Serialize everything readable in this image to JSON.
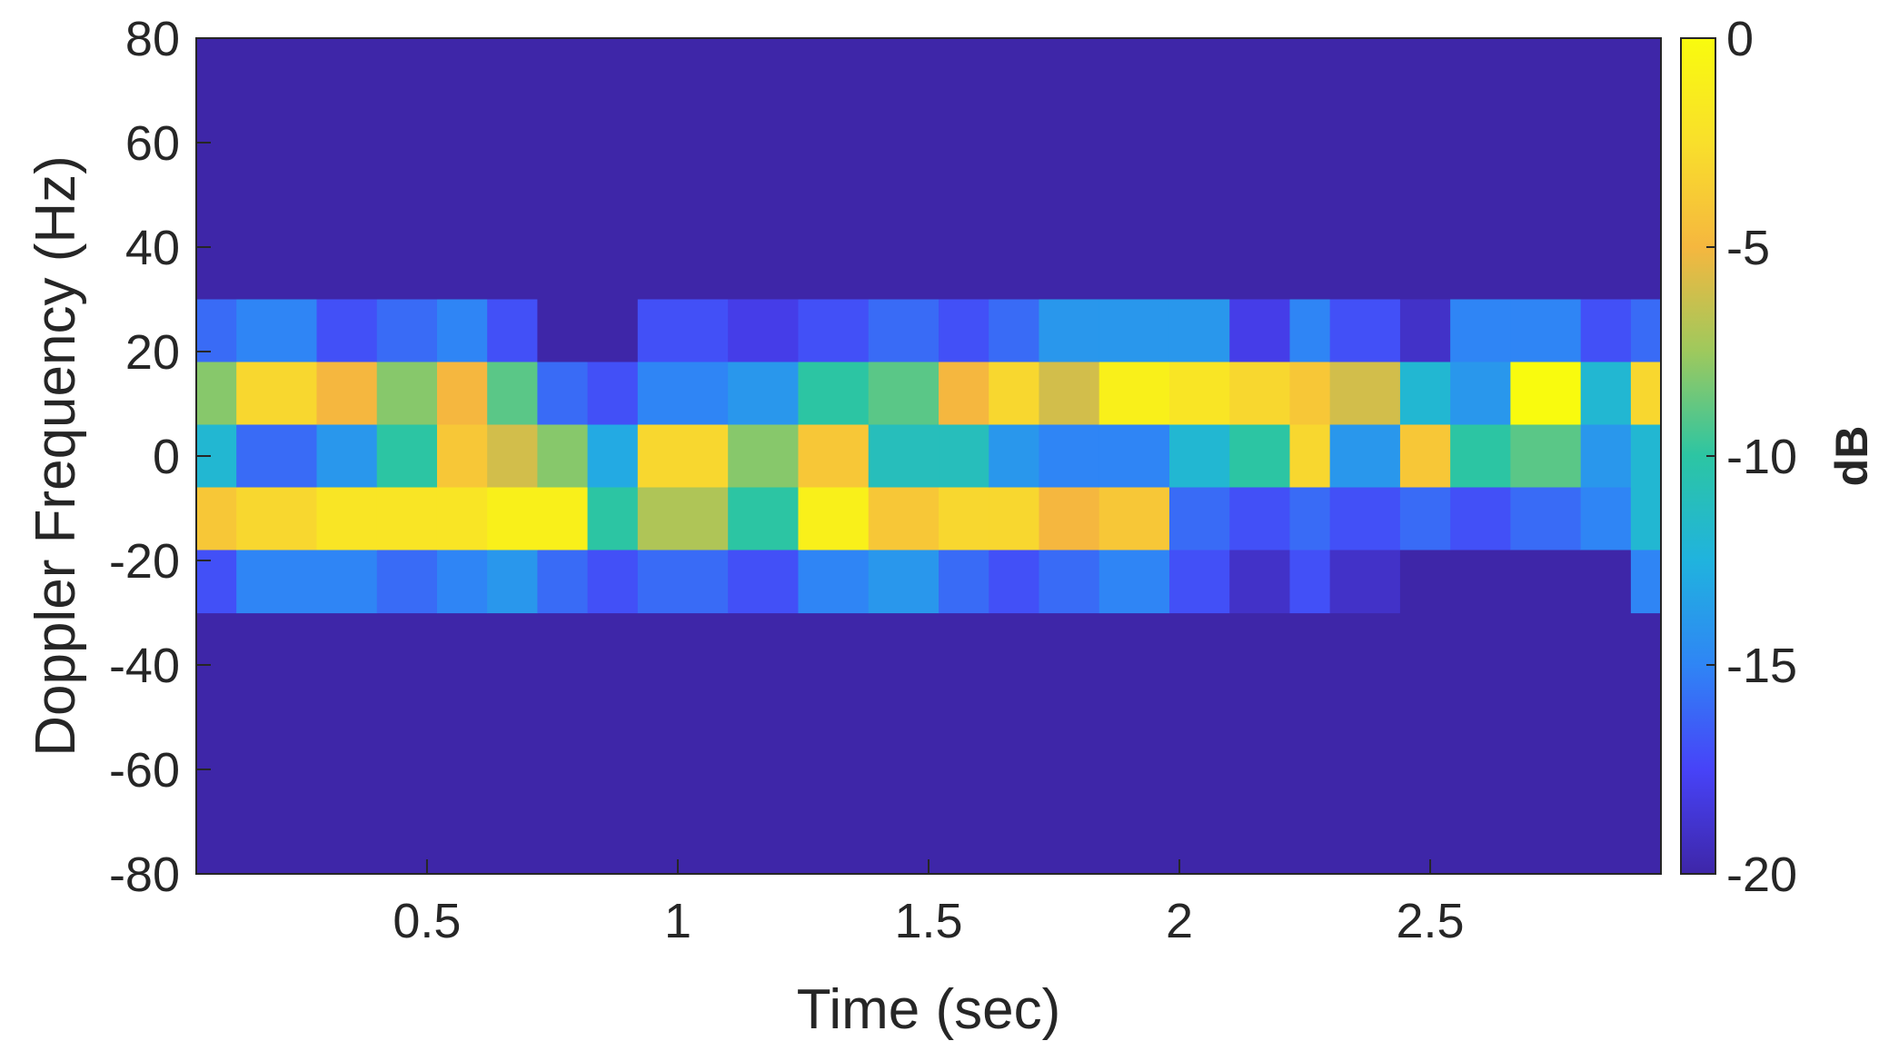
{
  "chart_data": {
    "type": "heatmap",
    "title": "",
    "xlabel": "Time (sec)",
    "ylabel": "Doppler Frequency (Hz)",
    "colorbar_label": "dB",
    "xlim": [
      0.04,
      2.96
    ],
    "ylim": [
      -80,
      80
    ],
    "xticks": [
      0.5,
      1,
      1.5,
      2,
      2.5
    ],
    "xtick_labels": [
      "0.5",
      "1",
      "1.5",
      "2",
      "2.5"
    ],
    "yticks": [
      -80,
      -60,
      -40,
      -20,
      0,
      20,
      40,
      60,
      80
    ],
    "ytick_labels": [
      "-80",
      "-60",
      "-40",
      "-20",
      "0",
      "20",
      "40",
      "60",
      "80"
    ],
    "clim": [
      -20,
      0
    ],
    "cticks": [
      -20,
      -15,
      -10,
      -5,
      0
    ],
    "ctick_labels": [
      "-20",
      "-15",
      "-10",
      "-5",
      "0"
    ],
    "colormap": "parula",
    "colormap_stops": [
      "#3e26a8",
      "#4743f8",
      "#2f85f5",
      "#20b3de",
      "#2cc5a3",
      "#9ec95d",
      "#f5b73f",
      "#f9df2b",
      "#f9fb0e"
    ],
    "background_db": -20,
    "frequency_bins": [
      {
        "f0": 18,
        "f1": 30
      },
      {
        "f0": 6,
        "f1": 18
      },
      {
        "f0": -6,
        "f1": 6
      },
      {
        "f0": -18,
        "f1": -6
      },
      {
        "f0": -30,
        "f1": -18
      }
    ],
    "time_segments": [
      {
        "t0": 0.04,
        "t1": 0.12,
        "db": [
          -16,
          -8,
          -12,
          -4,
          -17
        ]
      },
      {
        "t0": 0.12,
        "t1": 0.28,
        "db": [
          -15,
          -3,
          -16,
          -3,
          -15
        ]
      },
      {
        "t0": 0.28,
        "t1": 0.4,
        "db": [
          -17,
          -5,
          -14,
          -2,
          -15
        ]
      },
      {
        "t0": 0.4,
        "t1": 0.52,
        "db": [
          -16,
          -8,
          -10,
          -2,
          -16
        ]
      },
      {
        "t0": 0.52,
        "t1": 0.62,
        "db": [
          -15,
          -5,
          -4,
          -2,
          -15
        ]
      },
      {
        "t0": 0.62,
        "t1": 0.72,
        "db": [
          -17,
          -9,
          -6,
          -1,
          -14
        ]
      },
      {
        "t0": 0.72,
        "t1": 0.82,
        "db": [
          -20,
          -16,
          -8,
          -1,
          -16
        ]
      },
      {
        "t0": 0.82,
        "t1": 0.92,
        "db": [
          -20,
          -17,
          -13,
          -10,
          -17
        ]
      },
      {
        "t0": 0.92,
        "t1": 1.1,
        "db": [
          -17,
          -15,
          -3,
          -7,
          -16
        ]
      },
      {
        "t0": 1.1,
        "t1": 1.24,
        "db": [
          -18,
          -14,
          -8,
          -10,
          -17
        ]
      },
      {
        "t0": 1.24,
        "t1": 1.38,
        "db": [
          -17,
          -10,
          -4,
          -1,
          -15
        ]
      },
      {
        "t0": 1.38,
        "t1": 1.52,
        "db": [
          -16,
          -9,
          -11,
          -4,
          -14
        ]
      },
      {
        "t0": 1.52,
        "t1": 1.62,
        "db": [
          -17,
          -5,
          -11,
          -3,
          -16
        ]
      },
      {
        "t0": 1.62,
        "t1": 1.72,
        "db": [
          -16,
          -3,
          -14,
          -3,
          -17
        ]
      },
      {
        "t0": 1.72,
        "t1": 1.84,
        "db": [
          -14,
          -6,
          -15,
          -5,
          -16
        ]
      },
      {
        "t0": 1.84,
        "t1": 1.98,
        "db": [
          -14,
          -1,
          -15,
          -4,
          -15
        ]
      },
      {
        "t0": 1.98,
        "t1": 2.1,
        "db": [
          -14,
          -2,
          -12,
          -16,
          -17
        ]
      },
      {
        "t0": 2.1,
        "t1": 2.22,
        "db": [
          -18,
          -3,
          -10,
          -17,
          -19
        ]
      },
      {
        "t0": 2.22,
        "t1": 2.3,
        "db": [
          -15,
          -4,
          -3,
          -16,
          -17
        ]
      },
      {
        "t0": 2.3,
        "t1": 2.44,
        "db": [
          -17,
          -6,
          -14,
          -17,
          -19
        ]
      },
      {
        "t0": 2.44,
        "t1": 2.54,
        "db": [
          -19,
          -12,
          -4,
          -16,
          -20
        ]
      },
      {
        "t0": 2.54,
        "t1": 2.66,
        "db": [
          -15,
          -14,
          -10,
          -17,
          -20
        ]
      },
      {
        "t0": 2.66,
        "t1": 2.8,
        "db": [
          -15,
          0,
          -9,
          -16,
          -20
        ]
      },
      {
        "t0": 2.8,
        "t1": 2.9,
        "db": [
          -17,
          -12,
          -14,
          -15,
          -20
        ]
      },
      {
        "t0": 2.9,
        "t1": 2.96,
        "db": [
          -16,
          -3,
          -12,
          -12,
          -15
        ]
      }
    ]
  }
}
